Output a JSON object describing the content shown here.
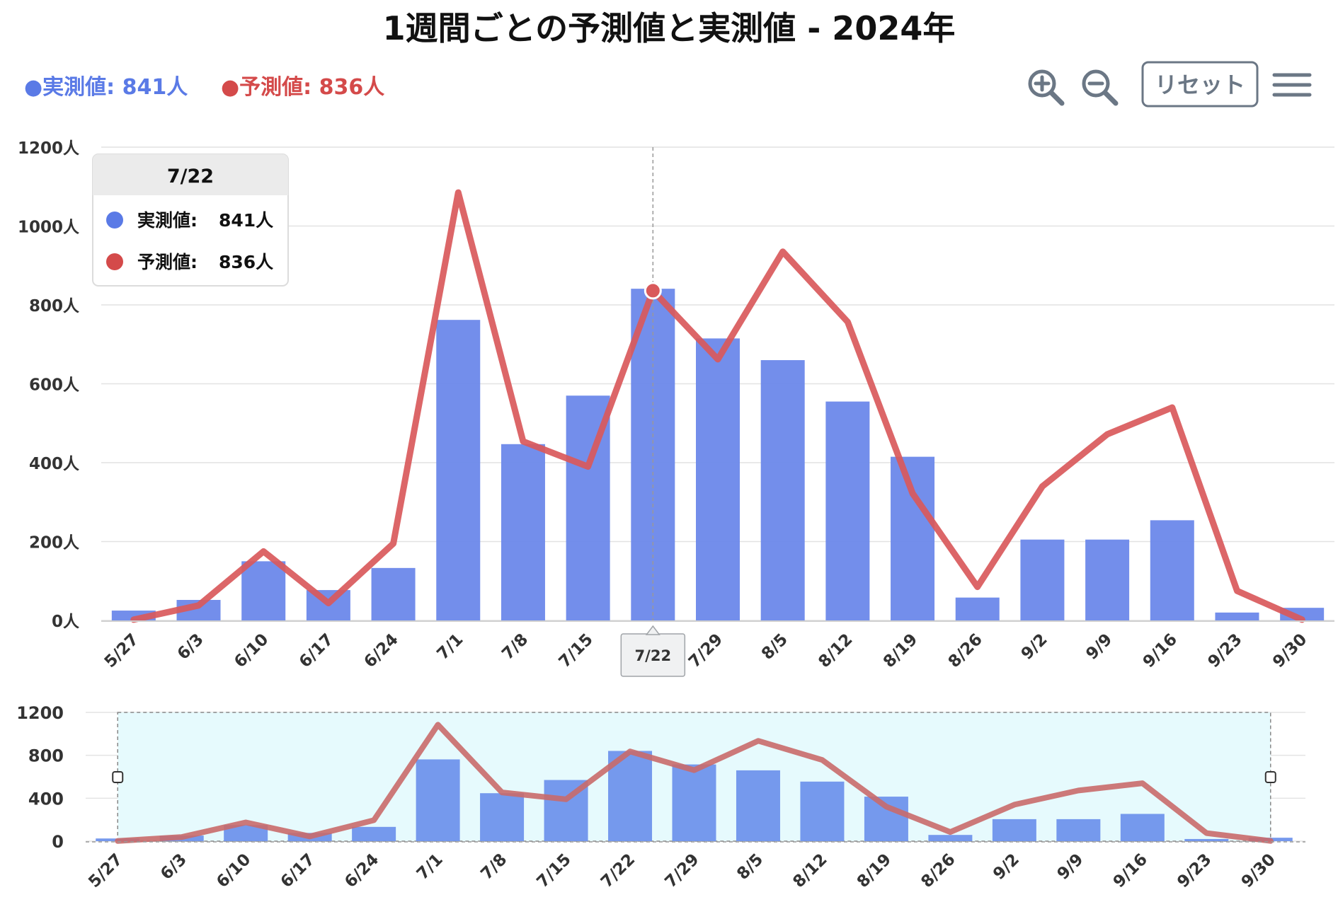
{
  "toolbar": {
    "zoom_in_icon": "zoom-in-icon",
    "zoom_out_icon": "zoom-out-icon",
    "reset_label": "リセット",
    "menu_icon": "hamburger-menu-icon",
    "icon_color": "#6b7785"
  },
  "legend": {
    "actual": "●実測値: 841人",
    "forecast": "●予測値: 836人"
  },
  "tooltip": {
    "title": "7/22",
    "actual_label": "実測値:",
    "actual_value": "841人",
    "forecast_label": "予測値:",
    "forecast_value": "836人"
  },
  "crosshair": {
    "label": "7/22"
  },
  "chart_data": {
    "type": "bar",
    "title": "1週間ごとの予測値と実測値 - 2024年",
    "categories": [
      "5/27",
      "6/3",
      "6/10",
      "6/17",
      "6/24",
      "7/1",
      "7/8",
      "7/15",
      "7/22",
      "7/29",
      "8/5",
      "8/12",
      "8/19",
      "8/26",
      "9/2",
      "9/9",
      "9/16",
      "9/23",
      "9/30"
    ],
    "series": [
      {
        "name": "実測値",
        "type": "bar",
        "color": "#6b88ea",
        "values": [
          25,
          52,
          150,
          77,
          133,
          762,
          447,
          570,
          841,
          715,
          660,
          555,
          415,
          58,
          205,
          205,
          254,
          20,
          32
        ]
      },
      {
        "name": "予測値",
        "type": "line",
        "color": "#d9595b",
        "values": [
          2,
          38,
          175,
          44,
          195,
          1085,
          454,
          390,
          836,
          662,
          935,
          757,
          322,
          85,
          340,
          472,
          540,
          75,
          2
        ]
      }
    ],
    "y_ticks": [
      "0人",
      "200人",
      "400人",
      "600人",
      "800人",
      "1000人",
      "1200人"
    ],
    "ylim": [
      0,
      1200
    ],
    "grid": true,
    "legend_position": "top-left",
    "highlighted_category": "7/22",
    "navigator": {
      "y_ticks": [
        "0",
        "400",
        "800",
        "1200"
      ],
      "ylim": [
        0,
        1200
      ],
      "selection": [
        "5/27",
        "9/30"
      ],
      "fill_color": "#e6fafd"
    }
  }
}
